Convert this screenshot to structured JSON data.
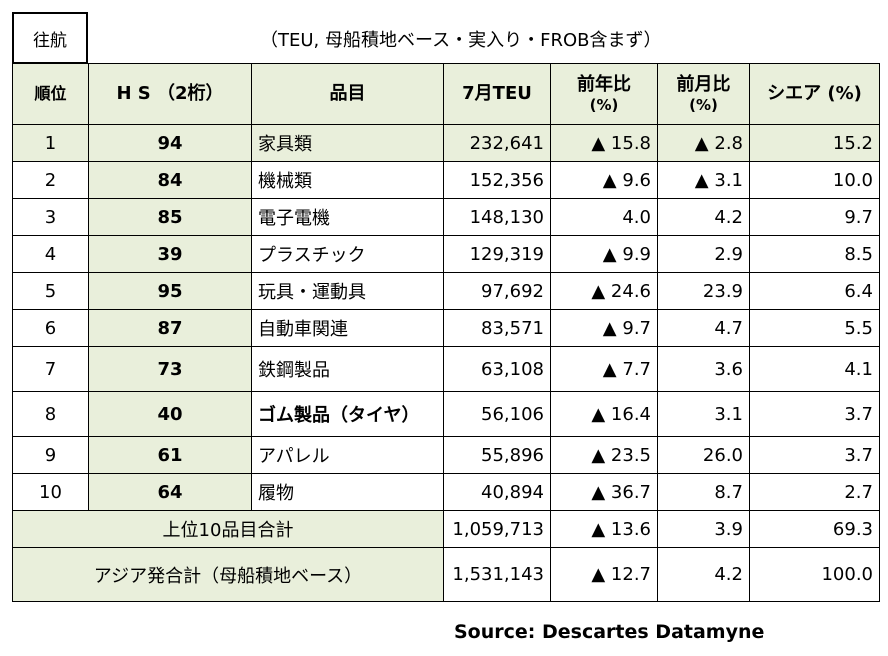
{
  "tag": "往航",
  "subtitle": "（TEU, 母船積地ベース・実入り・FROB含まず）",
  "headers": {
    "rank": "順位",
    "hs": "H S （2桁）",
    "item": "品目",
    "teu": "7月TEU",
    "yoy_line1": "前年比",
    "yoy_line2": "(%)",
    "mom_line1": "前月比",
    "mom_line2": "(%)",
    "share": "シエア (%)"
  },
  "rows": [
    {
      "rank": "1",
      "hs": "94",
      "item": "家具類",
      "teu": "232,641",
      "yoy": "▲ 15.8",
      "mom": "▲ 2.8",
      "share": "15.2"
    },
    {
      "rank": "2",
      "hs": "84",
      "item": "機械類",
      "teu": "152,356",
      "yoy": "▲ 9.6",
      "mom": "▲ 3.1",
      "share": "10.0"
    },
    {
      "rank": "3",
      "hs": "85",
      "item": "電子電機",
      "teu": "148,130",
      "yoy": "4.0",
      "mom": "4.2",
      "share": "9.7"
    },
    {
      "rank": "4",
      "hs": "39",
      "item": "プラスチック",
      "teu": "129,319",
      "yoy": "▲ 9.9",
      "mom": "2.9",
      "share": "8.5"
    },
    {
      "rank": "5",
      "hs": "95",
      "item": "玩具・運動具",
      "teu": "97,692",
      "yoy": "▲ 24.6",
      "mom": "23.9",
      "share": "6.4"
    },
    {
      "rank": "6",
      "hs": "87",
      "item": "自動車関連",
      "teu": "83,571",
      "yoy": "▲ 9.7",
      "mom": "4.7",
      "share": "5.5"
    },
    {
      "rank": "7",
      "hs": "73",
      "item": "鉄鋼製品",
      "teu": "63,108",
      "yoy": "▲ 7.7",
      "mom": "3.6",
      "share": "4.1"
    },
    {
      "rank": "8",
      "hs": "40",
      "item": "ゴム製品（タイヤ）",
      "teu": "56,106",
      "yoy": "▲ 16.4",
      "mom": "3.1",
      "share": "3.7"
    },
    {
      "rank": "9",
      "hs": "61",
      "item": "アパレル",
      "teu": "55,896",
      "yoy": "▲ 23.5",
      "mom": "26.0",
      "share": "3.7"
    },
    {
      "rank": "10",
      "hs": "64",
      "item": "履物",
      "teu": "40,894",
      "yoy": "▲ 36.7",
      "mom": "8.7",
      "share": "2.7"
    }
  ],
  "top10": {
    "label": "上位10品目合計",
    "teu": "1,059,713",
    "yoy": "▲ 13.6",
    "mom": "3.9",
    "share": "69.3"
  },
  "asia": {
    "label": "アジア発合計（母船積地ベース）",
    "teu": "1,531,143",
    "yoy": "▲ 12.7",
    "mom": "4.2",
    "share": "100.0"
  },
  "source": "Source: Descartes Datamyne",
  "colors": {
    "header_bg": "#e9efdb",
    "border": "#000000"
  }
}
